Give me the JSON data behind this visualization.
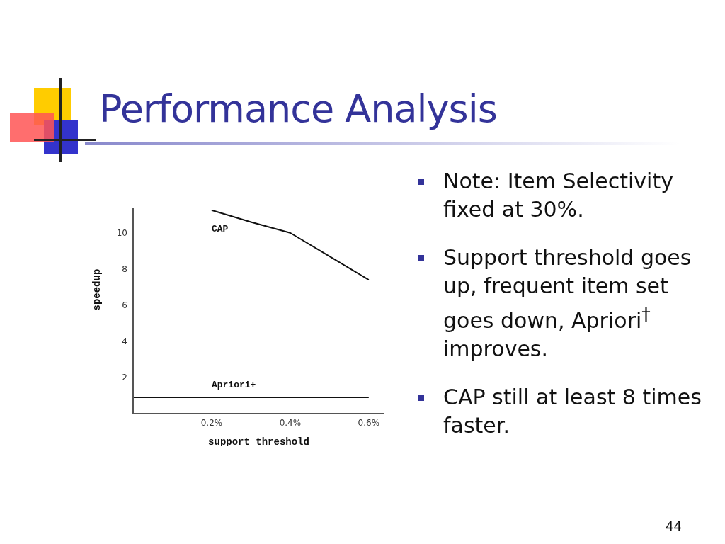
{
  "chart_data": {
    "type": "line",
    "title": "Performance Analysis",
    "xlabel": "support threshold",
    "ylabel": "speedup",
    "series": [
      {
        "name": "CAP",
        "color": "#111111",
        "x": [
          0.2,
          0.3,
          0.4,
          0.5,
          0.6
        ],
        "values": [
          11.25,
          10.6,
          10.0,
          8.7,
          7.4
        ]
      },
      {
        "name": "Apriori+",
        "color": "#111111",
        "x": [
          0,
          0.2,
          0.4,
          0.6
        ],
        "values": [
          0.9,
          0.9,
          0.9,
          0.9
        ]
      }
    ],
    "xlim": [
      0,
      0.64
    ],
    "xticks": [
      {
        "value": 0.2,
        "label": "0.2%"
      },
      {
        "value": 0.4,
        "label": "0.4%"
      },
      {
        "value": 0.6,
        "label": "0.6%"
      }
    ],
    "ylim": [
      0,
      11.4
    ],
    "yticks": [
      2,
      4,
      6,
      8,
      10
    ],
    "grid": false,
    "legend": false,
    "marker": "none",
    "line_style": "solid",
    "annotations": [
      "Note: Item Selectivity fixed at 30%.",
      "Support threshold goes up, frequent item set goes down, Apriori$^{†}$ improves.",
      "CAP still at least 8 times faster.",
      "44"
    ]
  }
}
